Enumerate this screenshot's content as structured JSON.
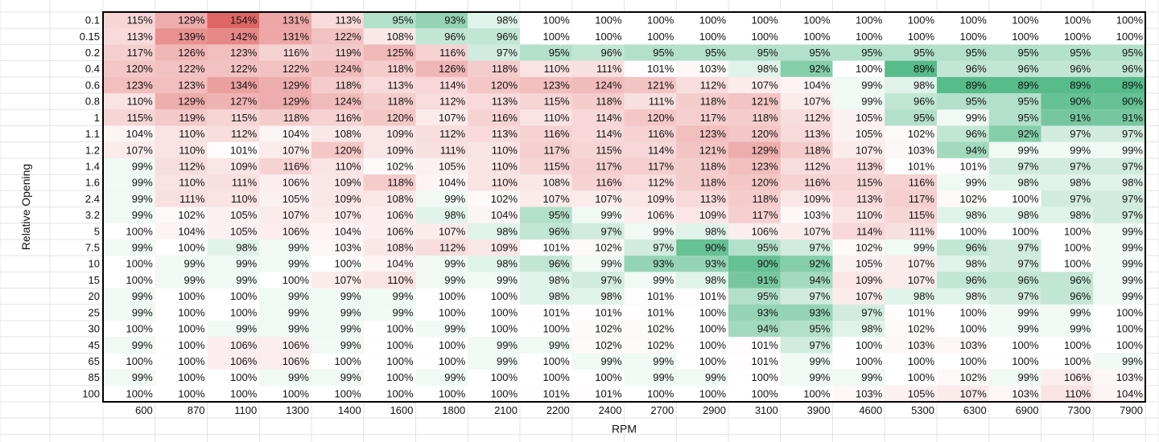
{
  "chart_data": {
    "type": "heatmap",
    "xlabel": "RPM",
    "ylabel": "Relative Opening",
    "x": [
      "600",
      "870",
      "1100",
      "1300",
      "1400",
      "1600",
      "1800",
      "2100",
      "2200",
      "2400",
      "2700",
      "2900",
      "3100",
      "3900",
      "4600",
      "5300",
      "6300",
      "6900",
      "7300",
      "7900"
    ],
    "y": [
      "0.1",
      "0.15",
      "0.2",
      "0.4",
      "0.6",
      "0.8",
      "1",
      "1.1",
      "1.2",
      "1.4",
      "1.6",
      "2.4",
      "3.2",
      "5",
      "7.5",
      "10",
      "15",
      "20",
      "25",
      "30",
      "45",
      "65",
      "85",
      "100"
    ],
    "values": [
      [
        115,
        129,
        154,
        131,
        113,
        95,
        93,
        98,
        100,
        100,
        100,
        100,
        100,
        100,
        100,
        100,
        100,
        100,
        100,
        100
      ],
      [
        113,
        139,
        142,
        131,
        122,
        108,
        96,
        96,
        100,
        100,
        100,
        100,
        100,
        100,
        100,
        100,
        100,
        100,
        100,
        100
      ],
      [
        117,
        126,
        123,
        116,
        119,
        125,
        116,
        97,
        95,
        96,
        95,
        95,
        95,
        95,
        95,
        95,
        95,
        95,
        95,
        95
      ],
      [
        120,
        122,
        122,
        122,
        124,
        118,
        126,
        118,
        110,
        111,
        101,
        103,
        98,
        92,
        100,
        89,
        96,
        96,
        96,
        96
      ],
      [
        123,
        123,
        134,
        129,
        118,
        113,
        114,
        120,
        123,
        124,
        121,
        112,
        107,
        104,
        99,
        98,
        89,
        89,
        89,
        89
      ],
      [
        110,
        129,
        127,
        129,
        124,
        118,
        112,
        113,
        115,
        118,
        111,
        118,
        121,
        107,
        99,
        96,
        95,
        95,
        90,
        90
      ],
      [
        115,
        119,
        115,
        118,
        116,
        120,
        107,
        116,
        110,
        114,
        120,
        117,
        118,
        112,
        105,
        95,
        99,
        95,
        91,
        91
      ],
      [
        104,
        110,
        112,
        104,
        108,
        109,
        112,
        113,
        116,
        114,
        116,
        123,
        120,
        113,
        105,
        102,
        96,
        92,
        97,
        97
      ],
      [
        107,
        110,
        101,
        107,
        120,
        109,
        111,
        110,
        117,
        115,
        114,
        121,
        129,
        118,
        107,
        103,
        94,
        99,
        99,
        99
      ],
      [
        99,
        112,
        109,
        116,
        110,
        102,
        105,
        110,
        115,
        117,
        117,
        118,
        123,
        112,
        113,
        101,
        101,
        97,
        97,
        97
      ],
      [
        99,
        110,
        111,
        106,
        109,
        118,
        104,
        110,
        108,
        116,
        112,
        118,
        120,
        116,
        115,
        116,
        99,
        98,
        98,
        98
      ],
      [
        99,
        111,
        110,
        105,
        109,
        108,
        99,
        102,
        107,
        107,
        109,
        113,
        118,
        109,
        113,
        117,
        102,
        100,
        97,
        97
      ],
      [
        99,
        102,
        105,
        107,
        107,
        106,
        98,
        104,
        95,
        99,
        106,
        109,
        117,
        103,
        110,
        115,
        98,
        98,
        98,
        97
      ],
      [
        100,
        104,
        105,
        106,
        104,
        106,
        107,
        98,
        96,
        97,
        99,
        98,
        106,
        107,
        114,
        111,
        100,
        100,
        100,
        99
      ],
      [
        99,
        100,
        98,
        99,
        103,
        108,
        112,
        109,
        101,
        102,
        97,
        90,
        95,
        97,
        102,
        99,
        96,
        97,
        100,
        99
      ],
      [
        100,
        99,
        99,
        99,
        100,
        104,
        99,
        98,
        96,
        99,
        93,
        93,
        90,
        92,
        105,
        107,
        98,
        97,
        100,
        99
      ],
      [
        100,
        99,
        99,
        100,
        107,
        110,
        99,
        99,
        98,
        97,
        99,
        98,
        91,
        94,
        109,
        107,
        96,
        96,
        96,
        99
      ],
      [
        99,
        100,
        100,
        99,
        99,
        99,
        100,
        100,
        98,
        98,
        101,
        101,
        95,
        97,
        107,
        98,
        98,
        97,
        96,
        99
      ],
      [
        99,
        100,
        100,
        99,
        99,
        99,
        100,
        100,
        101,
        101,
        101,
        100,
        93,
        93,
        97,
        101,
        100,
        99,
        99,
        100
      ],
      [
        100,
        100,
        99,
        99,
        99,
        100,
        99,
        100,
        100,
        102,
        102,
        100,
        94,
        95,
        98,
        102,
        100,
        99,
        99,
        100
      ],
      [
        99,
        100,
        106,
        106,
        99,
        100,
        100,
        99,
        99,
        102,
        102,
        100,
        101,
        97,
        100,
        103,
        103,
        100,
        100,
        100
      ],
      [
        100,
        100,
        106,
        106,
        100,
        100,
        100,
        99,
        100,
        99,
        99,
        100,
        101,
        99,
        100,
        100,
        100,
        100,
        100,
        99
      ],
      [
        99,
        100,
        100,
        99,
        99,
        100,
        99,
        100,
        100,
        100,
        99,
        99,
        100,
        99,
        99,
        100,
        102,
        99,
        106,
        103
      ],
      [
        100,
        100,
        100,
        100,
        100,
        100,
        100,
        100,
        101,
        101,
        100,
        100,
        100,
        100,
        103,
        105,
        107,
        103,
        110,
        104
      ]
    ],
    "value_suffix": "%",
    "neutral_value": 100,
    "colors": {
      "high": "#e06666",
      "low": "#57bb8a",
      "neutral": "#ffffff",
      "border": "#000000",
      "gridline": "#e3e3e3",
      "text": "#111111"
    }
  }
}
